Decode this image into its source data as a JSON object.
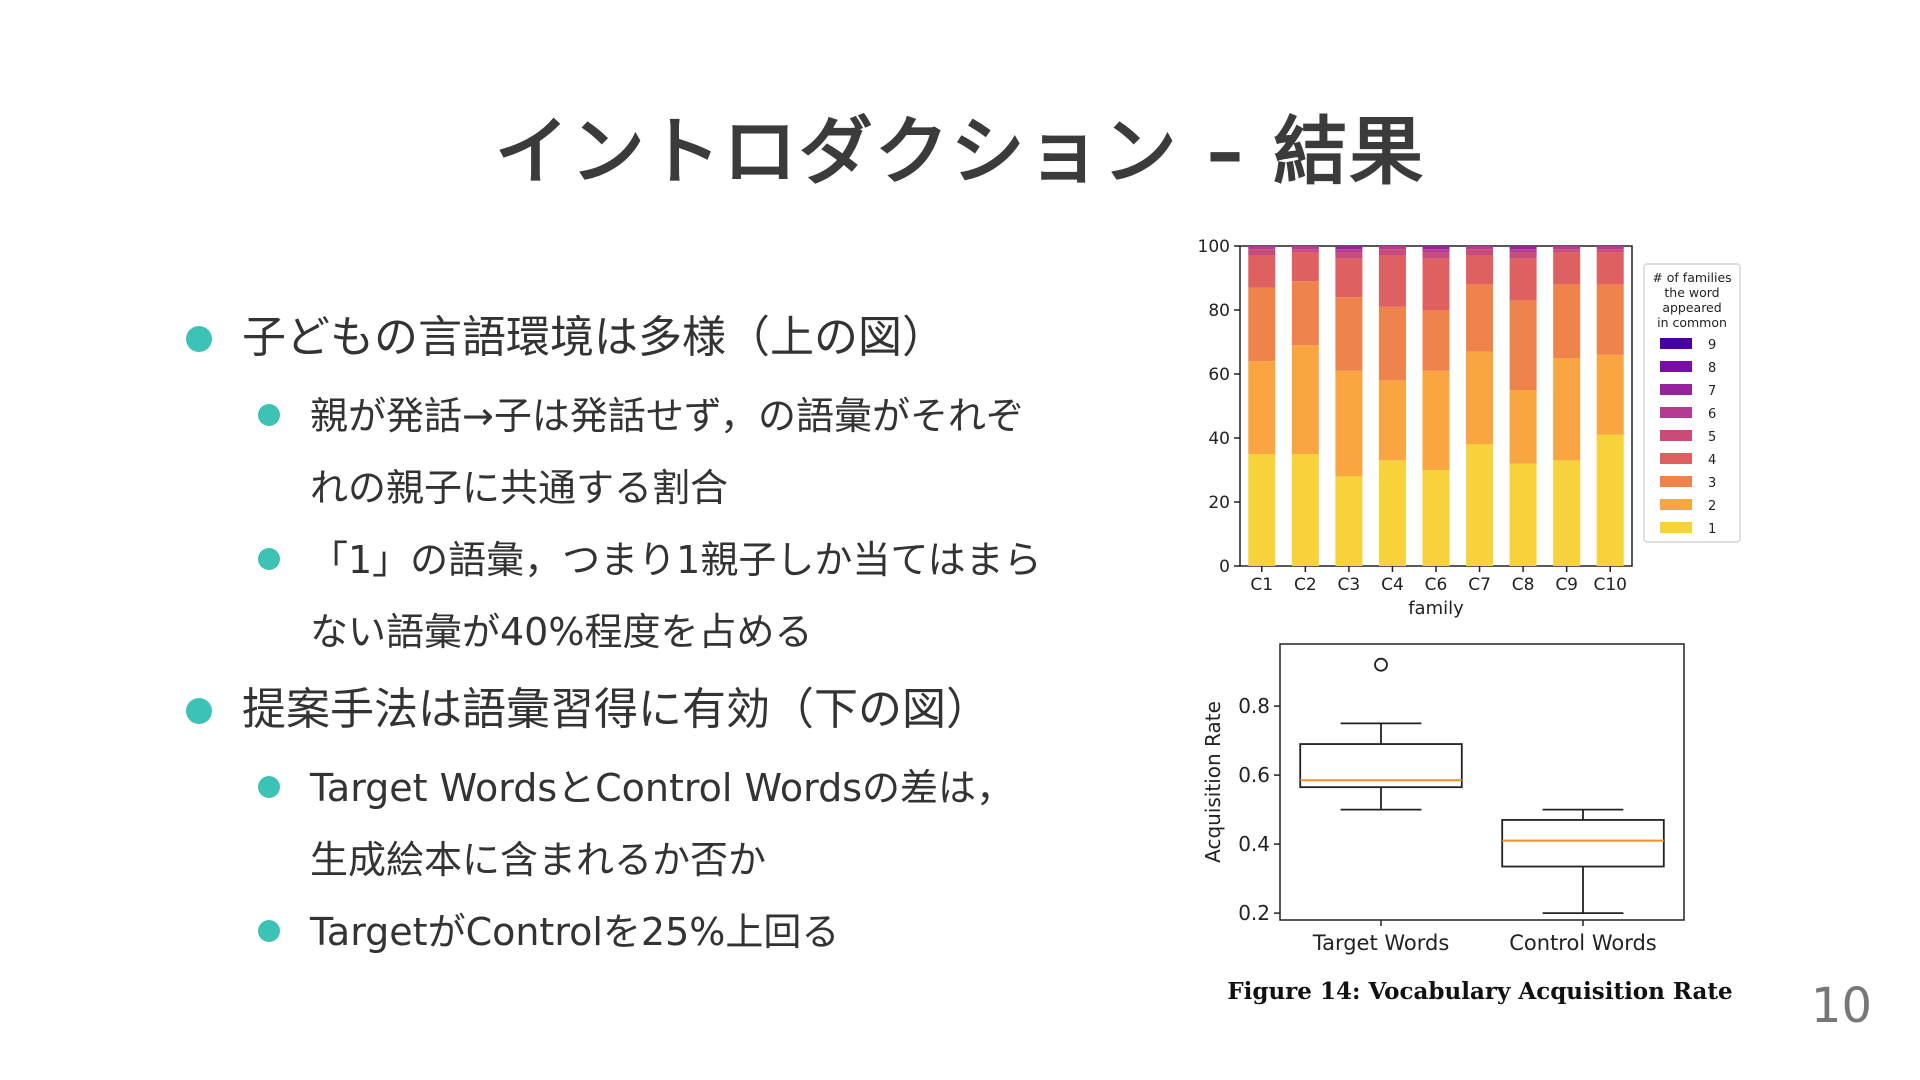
{
  "slide": {
    "title": "イントロダクション – 結果",
    "page_number": "10",
    "bullets": [
      {
        "text": "子どもの言語環境は多様（上の図）",
        "sub": [
          "親が発話→子は発話せず，の語彙がそれぞ\nれの親子に共通する割合",
          "「1」の語彙，つまり1親子しか当てはまら\nない語彙が40%程度を占める"
        ]
      },
      {
        "text": "提案手法は語彙習得に有効（下の図）",
        "sub": [
          "Target WordsとControl Wordsの差は，\n生成絵本に含まれるか否か",
          "TargetがControlを25%上回る"
        ]
      }
    ],
    "figure_caption": "Figure 14: Vocabulary Acquisition Rate"
  },
  "chart_data": [
    {
      "type": "bar",
      "stacked": true,
      "categories": [
        "C1",
        "C2",
        "C3",
        "C4",
        "C6",
        "C7",
        "C8",
        "C9",
        "C10"
      ],
      "xlabel": "family",
      "ylabel": "",
      "ylim": [
        0,
        100
      ],
      "yticks": [
        0,
        20,
        40,
        60,
        80,
        100
      ],
      "legend": {
        "title": "# of families the word appeared in common",
        "placement": "right"
      },
      "series": [
        {
          "name": "1",
          "color": "#f7d23a",
          "values": [
            35,
            35,
            28,
            33,
            30,
            38,
            32,
            33,
            41
          ]
        },
        {
          "name": "2",
          "color": "#f9a541",
          "values": [
            29,
            34,
            33,
            25,
            31,
            29,
            23,
            32,
            25
          ]
        },
        {
          "name": "3",
          "color": "#ee844c",
          "values": [
            23,
            20,
            23,
            23,
            19,
            21,
            28,
            23,
            22
          ]
        },
        {
          "name": "4",
          "color": "#de6060",
          "values": [
            10,
            9,
            12,
            16,
            16,
            9,
            13,
            10,
            10
          ]
        },
        {
          "name": "5",
          "color": "#c94b79",
          "values": [
            2,
            1,
            2,
            2,
            2,
            2,
            2,
            1,
            1
          ]
        },
        {
          "name": "6",
          "color": "#b33b91",
          "values": [
            1,
            1,
            1,
            1,
            1,
            1,
            1,
            1,
            1
          ]
        },
        {
          "name": "7",
          "color": "#95239e",
          "values": [
            0,
            0,
            1,
            0,
            1,
            0,
            1,
            0,
            0
          ]
        },
        {
          "name": "8",
          "color": "#7a0da7",
          "values": [
            0,
            0,
            0,
            0,
            0,
            0,
            0,
            0,
            0
          ]
        },
        {
          "name": "9",
          "color": "#47039f",
          "values": [
            0,
            0,
            0,
            0,
            0,
            0,
            0,
            0,
            0
          ]
        }
      ]
    },
    {
      "type": "box",
      "categories": [
        "Target Words",
        "Control Words"
      ],
      "ylabel": "Acquisition Rate",
      "ylim": [
        0.18,
        0.98
      ],
      "yticks": [
        0.2,
        0.4,
        0.6,
        0.8
      ],
      "boxes": [
        {
          "whisker_low": 0.5,
          "q1": 0.565,
          "median": 0.585,
          "q3": 0.69,
          "whisker_high": 0.75,
          "outliers": [
            0.92
          ]
        },
        {
          "whisker_low": 0.2,
          "q1": 0.335,
          "median": 0.41,
          "q3": 0.47,
          "whisker_high": 0.5,
          "outliers": []
        }
      ],
      "colors": {
        "median": "#f28e2b",
        "box": "#222222"
      }
    }
  ]
}
